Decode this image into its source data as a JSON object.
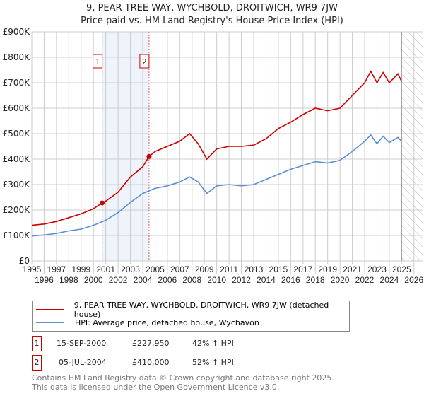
{
  "chart_data": {
    "type": "line",
    "title": "9, PEAR TREE WAY, WYCHBOLD, DROITWICH, WR9 7JW",
    "subtitle": "Price paid vs. HM Land Registry's House Price Index (HPI)",
    "xlim": [
      1995,
      2026.7
    ],
    "ylim": [
      0,
      900000
    ],
    "y_ticks": [
      {
        "v": 0,
        "label": "£0"
      },
      {
        "v": 100000,
        "label": "£100K"
      },
      {
        "v": 200000,
        "label": "£200K"
      },
      {
        "v": 300000,
        "label": "£300K"
      },
      {
        "v": 400000,
        "label": "£400K"
      },
      {
        "v": 500000,
        "label": "£500K"
      },
      {
        "v": 600000,
        "label": "£600K"
      },
      {
        "v": 700000,
        "label": "£700K"
      },
      {
        "v": 800000,
        "label": "£800K"
      },
      {
        "v": 900000,
        "label": "£900K"
      }
    ],
    "x_ticks": [
      1995,
      1996,
      1997,
      1998,
      1999,
      2000,
      2001,
      2002,
      2003,
      2004,
      2005,
      2006,
      2007,
      2008,
      2009,
      2010,
      2011,
      2012,
      2013,
      2014,
      2015,
      2016,
      2017,
      2018,
      2019,
      2020,
      2021,
      2022,
      2023,
      2024,
      2025,
      2026
    ],
    "forecast_start": 2025.0,
    "series": [
      {
        "name": "9, PEAR TREE WAY, WYCHBOLD, DROITWICH, WR9 7JW (detached house)",
        "color": "#cc0000",
        "x": [
          1995,
          1996,
          1997,
          1998,
          1999,
          2000,
          2000.71,
          2001,
          2002,
          2003,
          2004,
          2004.51,
          2005,
          2006,
          2007,
          2007.8,
          2008.5,
          2009.2,
          2010,
          2011,
          2012,
          2013,
          2014,
          2015,
          2016,
          2017,
          2018,
          2019,
          2020,
          2021,
          2022,
          2022.5,
          2023,
          2023.5,
          2024,
          2024.7,
          2025
        ],
        "y": [
          140000,
          145000,
          155000,
          170000,
          185000,
          205000,
          227950,
          235000,
          270000,
          330000,
          370000,
          410000,
          430000,
          450000,
          470000,
          500000,
          460000,
          400000,
          440000,
          450000,
          450000,
          455000,
          480000,
          520000,
          545000,
          575000,
          600000,
          590000,
          600000,
          650000,
          700000,
          745000,
          700000,
          740000,
          700000,
          735000,
          705000
        ]
      },
      {
        "name": "HPI: Average price, detached house, Wychavon",
        "color": "#5b8fd6",
        "x": [
          1995,
          1996,
          1997,
          1998,
          1999,
          2000,
          2001,
          2002,
          2003,
          2004,
          2005,
          2006,
          2007,
          2007.8,
          2008.5,
          2009.2,
          2010,
          2011,
          2012,
          2013,
          2014,
          2015,
          2016,
          2017,
          2018,
          2019,
          2020,
          2021,
          2022,
          2022.5,
          2023,
          2023.5,
          2024,
          2024.7,
          2025
        ],
        "y": [
          98000,
          102000,
          108000,
          118000,
          125000,
          140000,
          160000,
          190000,
          230000,
          265000,
          285000,
          295000,
          310000,
          330000,
          310000,
          265000,
          295000,
          300000,
          295000,
          300000,
          320000,
          340000,
          360000,
          375000,
          390000,
          385000,
          395000,
          430000,
          470000,
          495000,
          460000,
          490000,
          465000,
          485000,
          470000
        ]
      }
    ],
    "sales": [
      {
        "label": "1",
        "x": 2000.71,
        "price": 227950,
        "date": "15-SEP-2000",
        "price_text": "£227,950",
        "hpi": "42% ↑ HPI"
      },
      {
        "label": "2",
        "x": 2004.51,
        "price": 410000,
        "date": "05-JUL-2004",
        "price_text": "£410,000",
        "hpi": "52% ↑ HPI"
      }
    ]
  },
  "footer": {
    "line1": "Contains HM Land Registry data © Crown copyright and database right 2025.",
    "line2": "This data is licensed under the Open Government Licence v3.0."
  }
}
